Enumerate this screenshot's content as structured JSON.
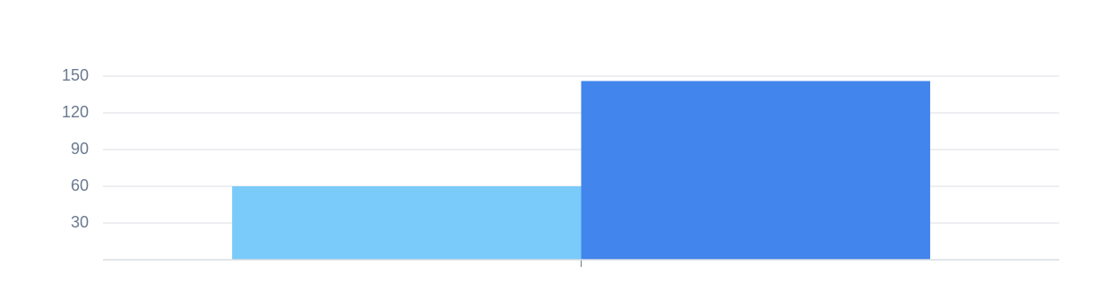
{
  "chart_data": {
    "type": "bar",
    "categories": [
      null
    ],
    "series": [
      {
        "color": "#7acbf9",
        "values": [
          60
        ]
      },
      {
        "color": "#4285ec",
        "values": [
          146
        ]
      }
    ],
    "ylim": [
      0,
      150
    ],
    "yticks": [
      30,
      60,
      90,
      120,
      150
    ],
    "grid": true
  }
}
